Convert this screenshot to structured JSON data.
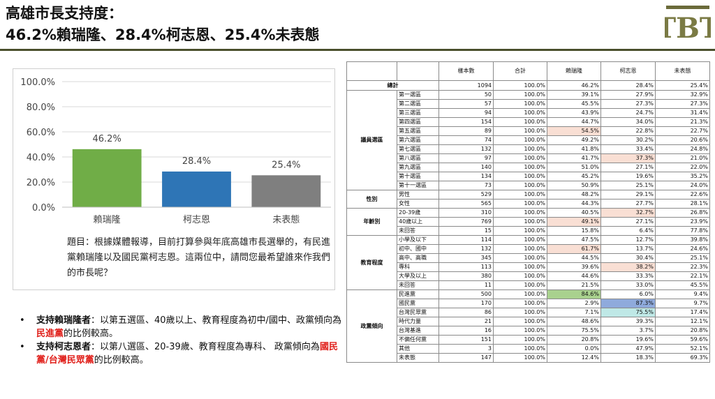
{
  "title": {
    "line1": "高雄市長支持度：",
    "line2": "46.2%賴瑞隆、28.4%柯志恩、25.4%未表態"
  },
  "logo": {
    "icon": "tbt-logo",
    "letters": "TBT"
  },
  "chart_data": {
    "type": "bar",
    "categories": [
      "賴瑞隆",
      "柯志恩",
      "未表態"
    ],
    "values": [
      46.2,
      28.4,
      25.4
    ],
    "value_labels": [
      "46.2%",
      "28.4%",
      "25.4%"
    ],
    "colors": [
      "#70ad47",
      "#2e75b6",
      "#7f7f7f"
    ],
    "ylim": [
      0,
      100
    ],
    "yticks": [
      "0.0%",
      "20.0%",
      "40.0%",
      "60.0%",
      "80.0%",
      "100.0%"
    ],
    "ytick_values": [
      0,
      20,
      40,
      60,
      80,
      100
    ],
    "grid": true
  },
  "question": "題目：根據媒體報導，目前打算參與年底高雄市長選舉的，有民進黨賴瑞隆以及國民黨柯志恩。這兩位中，請問您最希望誰來作我們的市長呢？",
  "bullets": [
    {
      "bold": "支持賴瑞隆者",
      "text": "：以第五選區、40歲以上、教育程度為初中/國中、政黨傾向為",
      "red": "民進黨",
      "tail": "的比例較高。"
    },
    {
      "bold": "支持柯志恩者",
      "text": "：以第八選區、20-39歲、教育程度為專科、 政黨傾向為",
      "red": "國民黨/台灣民眾黨",
      "tail": "的比例較高。"
    }
  ],
  "table": {
    "headers": [
      "樣本數",
      "合計",
      "賴瑞隆",
      "柯志恩",
      "未表態"
    ],
    "total": {
      "label": "總計",
      "cells": [
        "1094",
        "100.0%",
        "46.2%",
        "28.4%",
        "25.4%"
      ]
    },
    "groups": [
      {
        "name": "議員選區",
        "rows": [
          {
            "label": "第一選區",
            "cells": [
              "50",
              "100.0%",
              "39.1%",
              "27.9%",
              "32.9%"
            ]
          },
          {
            "label": "第二選區",
            "cells": [
              "57",
              "100.0%",
              "45.5%",
              "27.3%",
              "27.3%"
            ]
          },
          {
            "label": "第三選區",
            "cells": [
              "94",
              "100.0%",
              "43.9%",
              "24.7%",
              "31.4%"
            ]
          },
          {
            "label": "第四選區",
            "cells": [
              "154",
              "100.0%",
              "44.7%",
              "34.0%",
              "21.3%"
            ]
          },
          {
            "label": "第五選區",
            "cells": [
              "89",
              "100.0%",
              "54.5%",
              "22.8%",
              "22.7%"
            ],
            "hl": {
              "2": "pink"
            }
          },
          {
            "label": "第六選區",
            "cells": [
              "74",
              "100.0%",
              "49.2%",
              "30.2%",
              "20.6%"
            ]
          },
          {
            "label": "第七選區",
            "cells": [
              "132",
              "100.0%",
              "41.8%",
              "33.4%",
              "24.8%"
            ]
          },
          {
            "label": "第八選區",
            "cells": [
              "97",
              "100.0%",
              "41.7%",
              "37.3%",
              "21.0%"
            ],
            "hl": {
              "3": "pink"
            }
          },
          {
            "label": "第九選區",
            "cells": [
              "140",
              "100.0%",
              "51.0%",
              "27.1%",
              "22.0%"
            ]
          },
          {
            "label": "第十選區",
            "cells": [
              "134",
              "100.0%",
              "45.2%",
              "19.6%",
              "35.2%"
            ]
          },
          {
            "label": "第十一選區",
            "cells": [
              "73",
              "100.0%",
              "50.9%",
              "25.1%",
              "24.0%"
            ]
          }
        ]
      },
      {
        "name": "性別",
        "rows": [
          {
            "label": "男性",
            "cells": [
              "529",
              "100.0%",
              "48.2%",
              "29.1%",
              "22.6%"
            ]
          },
          {
            "label": "女性",
            "cells": [
              "565",
              "100.0%",
              "44.3%",
              "27.7%",
              "28.1%"
            ]
          }
        ]
      },
      {
        "name": "年齡別",
        "rows": [
          {
            "label": "20-39歲",
            "cells": [
              "310",
              "100.0%",
              "40.5%",
              "32.7%",
              "26.8%"
            ],
            "hl": {
              "3": "pink"
            }
          },
          {
            "label": "40歲以上",
            "cells": [
              "769",
              "100.0%",
              "49.1%",
              "27.1%",
              "23.9%"
            ],
            "hl": {
              "2": "pink"
            }
          },
          {
            "label": "未回答",
            "cells": [
              "15",
              "100.0%",
              "15.8%",
              "6.4%",
              "77.8%"
            ]
          }
        ]
      },
      {
        "name": "教育程度",
        "rows": [
          {
            "label": "小學及以下",
            "cells": [
              "114",
              "100.0%",
              "47.5%",
              "12.7%",
              "39.8%"
            ]
          },
          {
            "label": "初中、國中",
            "cells": [
              "132",
              "100.0%",
              "61.7%",
              "13.7%",
              "24.6%"
            ],
            "hl": {
              "2": "pink"
            }
          },
          {
            "label": "高中、高職",
            "cells": [
              "345",
              "100.0%",
              "44.5%",
              "30.4%",
              "25.1%"
            ]
          },
          {
            "label": "專科",
            "cells": [
              "113",
              "100.0%",
              "39.6%",
              "38.2%",
              "22.3%"
            ],
            "hl": {
              "3": "pink"
            }
          },
          {
            "label": "大學及以上",
            "cells": [
              "380",
              "100.0%",
              "44.6%",
              "33.3%",
              "22.1%"
            ]
          },
          {
            "label": "未回答",
            "cells": [
              "11",
              "100.0%",
              "21.5%",
              "33.0%",
              "45.5%"
            ]
          }
        ]
      },
      {
        "name": "政黨傾向",
        "rows": [
          {
            "label": "民進黨",
            "cells": [
              "500",
              "100.0%",
              "84.6%",
              "6.0%",
              "9.4%"
            ],
            "hl": {
              "2": "green"
            }
          },
          {
            "label": "國民黨",
            "cells": [
              "170",
              "100.0%",
              "2.9%",
              "87.3%",
              "9.7%"
            ],
            "hl": {
              "3": "blue"
            }
          },
          {
            "label": "台灣民眾黨",
            "cells": [
              "86",
              "100.0%",
              "7.1%",
              "75.5%",
              "17.4%"
            ],
            "hl": {
              "3": "teal"
            }
          },
          {
            "label": "時代力量",
            "cells": [
              "21",
              "100.0%",
              "48.6%",
              "39.3%",
              "12.1%"
            ]
          },
          {
            "label": "台灣基進",
            "cells": [
              "16",
              "100.0%",
              "75.5%",
              "3.7%",
              "20.8%"
            ]
          },
          {
            "label": "不偏任何黨",
            "cells": [
              "151",
              "100.0%",
              "20.8%",
              "19.6%",
              "59.6%"
            ]
          },
          {
            "label": "其他",
            "cells": [
              "3",
              "100.0%",
              "0.0%",
              "47.9%",
              "52.1%"
            ]
          },
          {
            "label": "未表態",
            "cells": [
              "147",
              "100.0%",
              "12.4%",
              "18.3%",
              "69.3%"
            ]
          }
        ]
      }
    ]
  }
}
